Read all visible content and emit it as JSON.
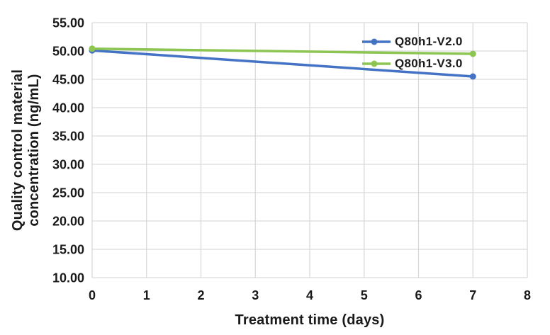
{
  "colors": {
    "background": "#ffffff",
    "grid": "#d9d9d9",
    "text": "#1a1a1a",
    "series_blue": "#4472c4",
    "series_green": "#8cc551"
  },
  "chart_data": {
    "type": "line",
    "title": "",
    "xlabel": "Treatment time (days)",
    "ylabel": "Quality control material concentration (ng/mL)",
    "ylabel_lines": [
      "Quality control material",
      "concentration (ng/mL)"
    ],
    "xlim": [
      0,
      8
    ],
    "ylim": [
      10,
      55
    ],
    "grid": true,
    "gridlines": "both",
    "legend_position": "top-right-inside",
    "x_ticks": [
      {
        "value": 0,
        "label": "0"
      },
      {
        "value": 1,
        "label": "1"
      },
      {
        "value": 2,
        "label": "2"
      },
      {
        "value": 3,
        "label": "3"
      },
      {
        "value": 4,
        "label": "4"
      },
      {
        "value": 5,
        "label": "5"
      },
      {
        "value": 6,
        "label": "6"
      },
      {
        "value": 7,
        "label": "7"
      },
      {
        "value": 8,
        "label": "8"
      }
    ],
    "y_ticks": [
      {
        "value": 55,
        "label": "55.00"
      },
      {
        "value": 50,
        "label": "50.00"
      },
      {
        "value": 45,
        "label": "45.00"
      },
      {
        "value": 40,
        "label": "40.00"
      },
      {
        "value": 35,
        "label": "35.00"
      },
      {
        "value": 30,
        "label": "30.00"
      },
      {
        "value": 25,
        "label": "25.00"
      },
      {
        "value": 20,
        "label": "20.00"
      },
      {
        "value": 15,
        "label": "15.00"
      },
      {
        "value": 10,
        "label": "10.00"
      }
    ],
    "series": [
      {
        "name": "Q80h1-V2.0",
        "color": "#4472c4",
        "marker": "circle",
        "points": [
          {
            "x": 0,
            "y": 50.1
          },
          {
            "x": 7,
            "y": 45.5
          }
        ]
      },
      {
        "name": "Q80h1-V3.0",
        "color": "#8cc551",
        "marker": "circle",
        "points": [
          {
            "x": 0,
            "y": 50.4
          },
          {
            "x": 7,
            "y": 49.5
          }
        ]
      }
    ]
  }
}
